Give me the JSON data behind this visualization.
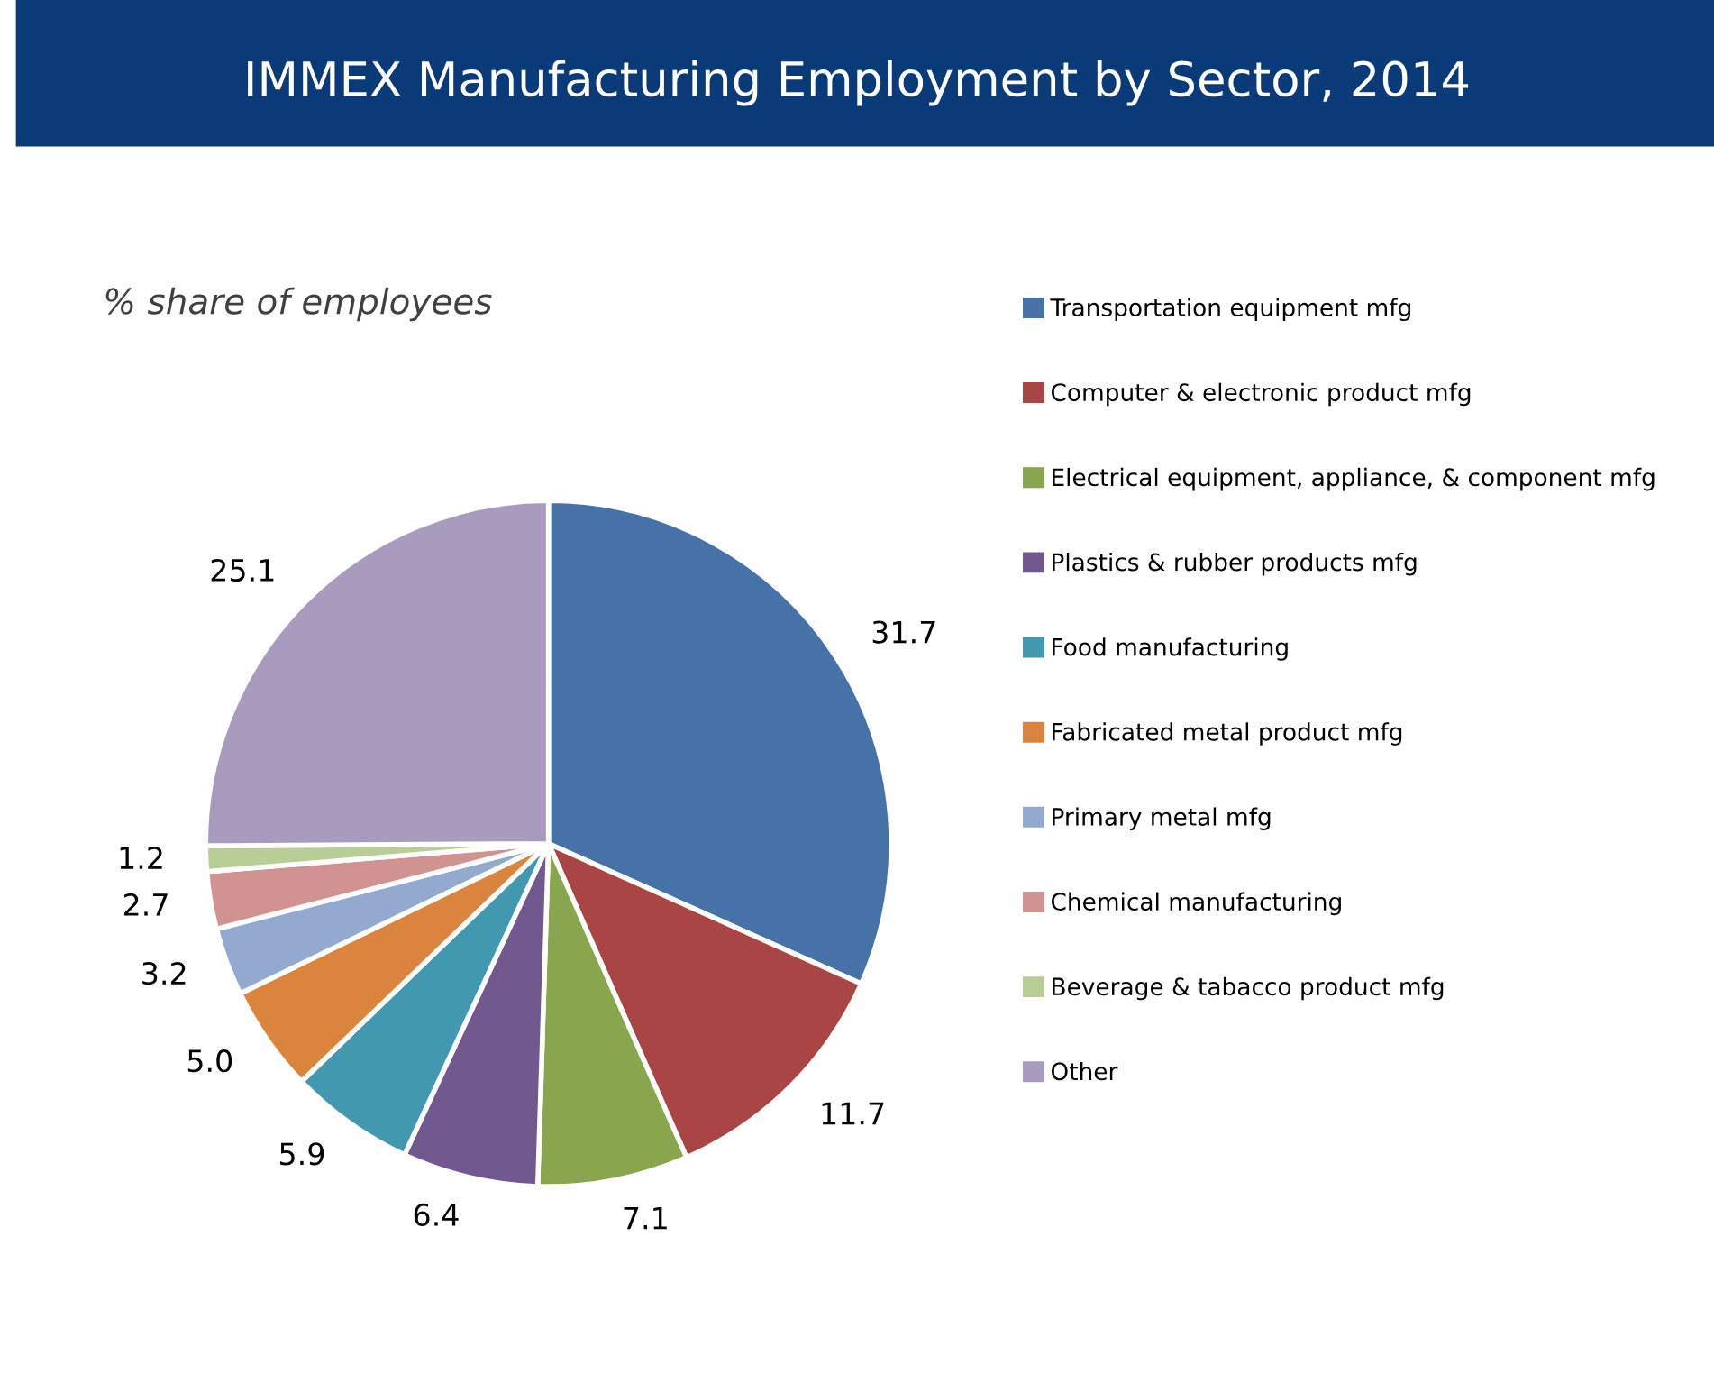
{
  "chart_data": {
    "type": "pie",
    "title": "IMMEX Manufacturing Employment by Sector, 2014",
    "subtitle": "% share of employees",
    "categories": [
      "Transportation equipment mfg",
      "Computer & electronic product mfg",
      "Electrical equipment, appliance, & component mfg",
      "Plastics & rubber products mfg",
      "Food manufacturing",
      "Fabricated metal product mfg",
      "Primary metal mfg",
      "Chemical manufacturing",
      "Beverage & tabacco product mfg",
      "Other"
    ],
    "values": [
      31.7,
      11.7,
      7.1,
      6.4,
      5.9,
      5.0,
      3.2,
      2.7,
      1.2,
      25.1
    ],
    "colors": [
      "#4672a8",
      "#a94544",
      "#89a54e",
      "#71588f",
      "#4198af",
      "#db843d",
      "#93a9cf",
      "#d19392",
      "#b9cd96",
      "#a99bbd"
    ],
    "value_labels": [
      "31.7",
      "11.7",
      "7.1",
      "6.4",
      "5.9",
      "5.0",
      "3.2",
      "2.7",
      "1.2",
      "25.1"
    ],
    "legend": "right"
  }
}
